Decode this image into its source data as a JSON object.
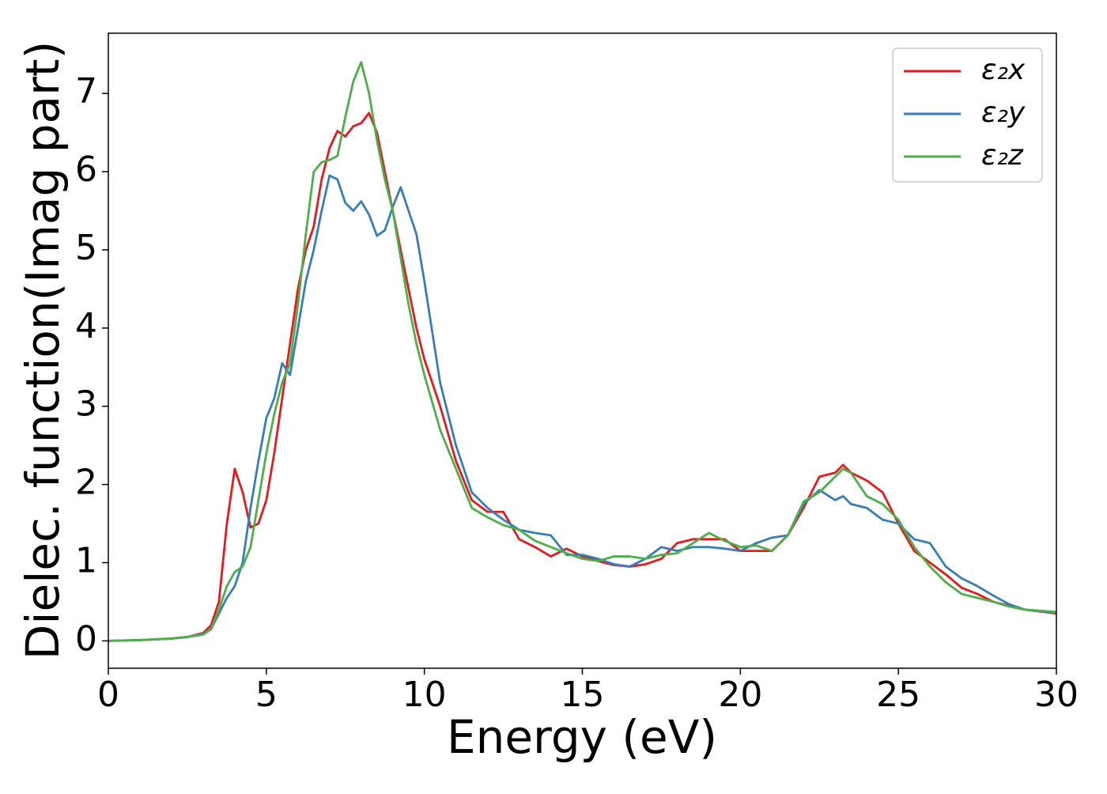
{
  "chart_data": {
    "type": "line",
    "xlabel": "Energy (eV)",
    "ylabel": "Dielec. function(Imag part)",
    "x": [
      0,
      1,
      2,
      2.5,
      3,
      3.25,
      3.5,
      3.75,
      4,
      4.25,
      4.5,
      4.75,
      5,
      5.25,
      5.5,
      5.75,
      6,
      6.25,
      6.5,
      6.75,
      7,
      7.25,
      7.5,
      7.75,
      8,
      8.25,
      8.5,
      8.75,
      9,
      9.25,
      9.5,
      9.75,
      10,
      10.5,
      11,
      11.5,
      12,
      12.5,
      13,
      13.5,
      14,
      14.5,
      15,
      15.5,
      16,
      16.5,
      17,
      17.5,
      18,
      18.5,
      19,
      19.5,
      20,
      20.5,
      21,
      21.5,
      22,
      22.5,
      23,
      23.25,
      23.5,
      24,
      24.5,
      25,
      25.5,
      26,
      26.5,
      27,
      27.5,
      28,
      28.5,
      29,
      30
    ],
    "series": [
      {
        "name": "ε₂x",
        "color": "#e41a1c",
        "values": [
          0,
          0.01,
          0.03,
          0.05,
          0.1,
          0.2,
          0.5,
          1.5,
          2.2,
          1.9,
          1.45,
          1.5,
          1.8,
          2.4,
          3.1,
          3.8,
          4.5,
          5.0,
          5.3,
          5.9,
          6.3,
          6.52,
          6.45,
          6.58,
          6.62,
          6.75,
          6.5,
          6.0,
          5.5,
          5.0,
          4.5,
          4.0,
          3.6,
          3.0,
          2.3,
          1.8,
          1.65,
          1.65,
          1.3,
          1.2,
          1.08,
          1.18,
          1.08,
          1.02,
          0.97,
          0.95,
          0.98,
          1.05,
          1.25,
          1.3,
          1.3,
          1.3,
          1.15,
          1.15,
          1.15,
          1.35,
          1.7,
          2.1,
          2.15,
          2.25,
          2.15,
          2.05,
          1.9,
          1.5,
          1.15,
          1.0,
          0.85,
          0.68,
          0.6,
          0.5,
          0.45,
          0.4,
          0.35
        ]
      },
      {
        "name": "ε₂y",
        "color": "#377eb8",
        "values": [
          0,
          0.01,
          0.03,
          0.05,
          0.09,
          0.15,
          0.35,
          0.55,
          0.7,
          1.0,
          1.7,
          2.3,
          2.85,
          3.1,
          3.55,
          3.4,
          4.0,
          4.6,
          5.0,
          5.5,
          5.95,
          5.9,
          5.6,
          5.5,
          5.62,
          5.45,
          5.18,
          5.25,
          5.55,
          5.8,
          5.5,
          5.2,
          4.6,
          3.3,
          2.5,
          1.9,
          1.7,
          1.55,
          1.42,
          1.38,
          1.35,
          1.1,
          1.1,
          1.05,
          0.98,
          0.95,
          1.05,
          1.2,
          1.15,
          1.2,
          1.2,
          1.18,
          1.15,
          1.25,
          1.32,
          1.35,
          1.75,
          1.93,
          1.8,
          1.85,
          1.75,
          1.7,
          1.55,
          1.5,
          1.3,
          1.25,
          0.95,
          0.8,
          0.7,
          0.58,
          0.47,
          0.4,
          0.36
        ]
      },
      {
        "name": "ε₂z",
        "color": "#4daf4a",
        "values": [
          0,
          0.01,
          0.03,
          0.05,
          0.08,
          0.15,
          0.4,
          0.7,
          0.88,
          0.95,
          1.2,
          1.8,
          2.4,
          2.9,
          3.3,
          3.55,
          4.3,
          5.2,
          6.0,
          6.12,
          6.15,
          6.2,
          6.7,
          7.15,
          7.4,
          7.0,
          6.4,
          5.9,
          5.5,
          4.9,
          4.3,
          3.8,
          3.4,
          2.7,
          2.2,
          1.7,
          1.58,
          1.48,
          1.42,
          1.28,
          1.2,
          1.12,
          1.05,
          1.02,
          1.08,
          1.08,
          1.05,
          1.1,
          1.12,
          1.25,
          1.38,
          1.28,
          1.2,
          1.22,
          1.15,
          1.35,
          1.78,
          1.9,
          2.1,
          2.2,
          2.15,
          1.85,
          1.75,
          1.55,
          1.2,
          0.95,
          0.75,
          0.6,
          0.55,
          0.5,
          0.44,
          0.4,
          0.37
        ]
      }
    ],
    "xlim": [
      0,
      30
    ],
    "xticks": [
      0,
      5,
      10,
      15,
      20,
      25,
      30
    ],
    "ylim": [
      -0.35,
      7.77
    ],
    "yticks": [
      0,
      1,
      2,
      3,
      4,
      5,
      6,
      7
    ],
    "grid": false,
    "legend": "upper right"
  }
}
